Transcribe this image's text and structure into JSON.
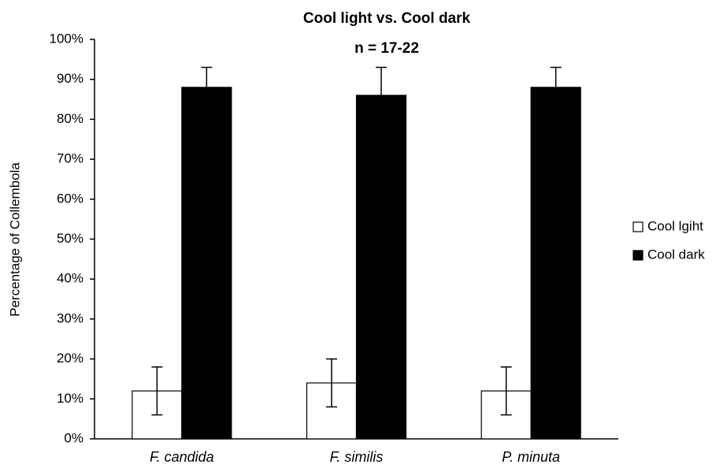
{
  "chart_data": {
    "type": "bar",
    "title": "Cool light vs. Cool dark",
    "subtitle": "n =  17-22",
    "y_label": "Percentage of Collembola",
    "categories": [
      "F. candida",
      "F. similis",
      "P. minuta"
    ],
    "series": [
      {
        "name": "Cool lgiht",
        "color": "#ffffff",
        "values": [
          12,
          14,
          12
        ],
        "errors": [
          6,
          6,
          6
        ]
      },
      {
        "name": "Cool dark",
        "color": "#000000",
        "values": [
          88,
          86,
          88
        ],
        "errors": [
          5,
          7,
          5
        ]
      }
    ],
    "ylim": [
      0,
      100
    ],
    "yticks": [
      {
        "value": 0,
        "label": "0%"
      },
      {
        "value": 10,
        "label": "10%"
      },
      {
        "value": 20,
        "label": "20%"
      },
      {
        "value": 30,
        "label": "30%"
      },
      {
        "value": 40,
        "label": "40%"
      },
      {
        "value": 50,
        "label": "50%"
      },
      {
        "value": 60,
        "label": "60%"
      },
      {
        "value": 70,
        "label": "70%"
      },
      {
        "value": 80,
        "label": "80%"
      },
      {
        "value": 90,
        "label": "90%"
      },
      {
        "value": 100,
        "label": "100%"
      }
    ],
    "grid": false,
    "legend": "right"
  }
}
